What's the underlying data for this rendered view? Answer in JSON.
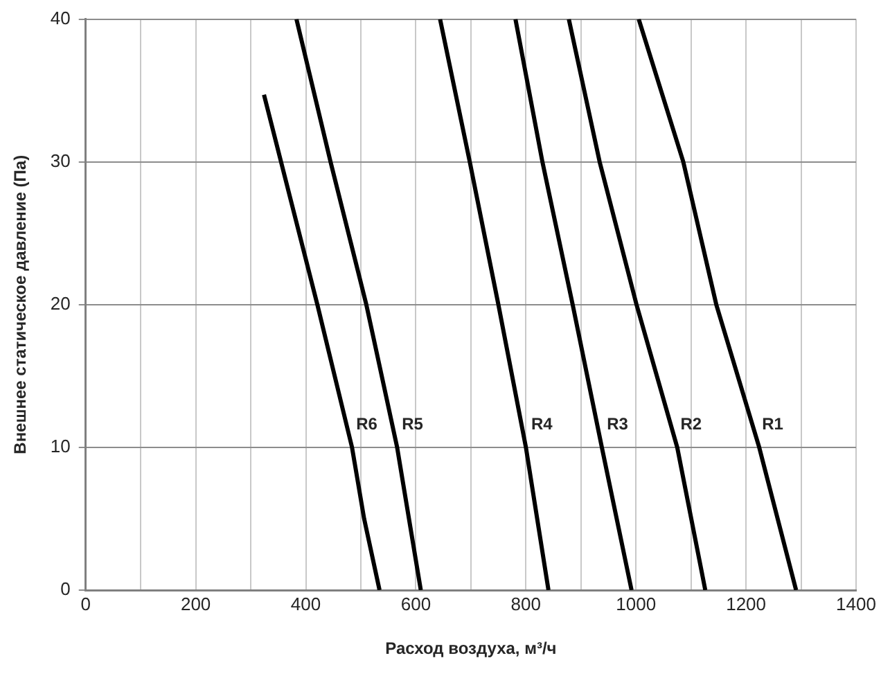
{
  "chart_data": {
    "type": "line",
    "xlabel": "Расход воздуха, м³/ч",
    "ylabel": "Внешнее статическое давление (Па)",
    "xlim": [
      0,
      1400
    ],
    "ylim": [
      0,
      40
    ],
    "xticks": [
      0,
      {
        "value": 100,
        "label": null
      },
      200,
      {
        "value": 300,
        "label": null
      },
      400,
      {
        "value": 500,
        "label": null
      },
      600,
      {
        "value": 700,
        "label": null
      },
      800,
      {
        "value": 900,
        "label": null
      },
      1000,
      {
        "value": 1100,
        "label": null
      },
      1200,
      {
        "value": 1300,
        "label": null
      },
      1400
    ],
    "yticks": [
      0,
      10,
      20,
      30,
      40
    ],
    "grid": true,
    "legend": false,
    "marker": "none",
    "line_style": "solid",
    "series": [
      {
        "name": "R1",
        "color": "#000000",
        "x": [
          1005,
          1086,
          1146,
          1224,
          1291
        ],
        "values": [
          40,
          30,
          20,
          10,
          0
        ]
      },
      {
        "name": "R2",
        "color": "#000000",
        "x": [
          878,
          934,
          1001,
          1075,
          1126
        ],
        "values": [
          40,
          30,
          20,
          10,
          0
        ]
      },
      {
        "name": "R3",
        "color": "#000000",
        "x": [
          781,
          830,
          885,
          938,
          992
        ],
        "values": [
          40,
          30,
          20,
          10,
          0
        ]
      },
      {
        "name": "R4",
        "color": "#000000",
        "x": [
          644,
          698,
          750,
          800,
          841
        ],
        "values": [
          40,
          30,
          20,
          10,
          0
        ]
      },
      {
        "name": "R5",
        "color": "#000000",
        "x": [
          383,
          445,
          510,
          566,
          609
        ],
        "values": [
          40,
          30,
          20,
          10,
          0
        ]
      },
      {
        "name": "R6",
        "color": "#000000",
        "x": [
          324,
          421,
          484,
          506,
          534
        ],
        "values": [
          34.7,
          20,
          10,
          5,
          0
        ]
      }
    ]
  }
}
